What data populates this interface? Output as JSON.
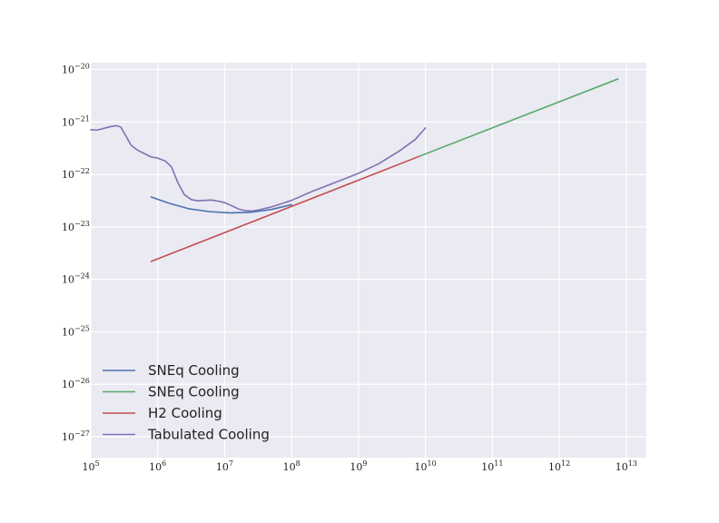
{
  "chart_data": {
    "type": "line",
    "title": "",
    "xlabel": "",
    "ylabel": "",
    "xscale": "log",
    "yscale": "log",
    "xlim": [
      100000,
      20000000000000
    ],
    "ylim": [
      4e-28,
      1.35e-20
    ],
    "grid": true,
    "legend_position": "lower-left",
    "x_ticks": [
      {
        "value": 100000.0,
        "base": "10",
        "exp": "5"
      },
      {
        "value": 1000000.0,
        "base": "10",
        "exp": "6"
      },
      {
        "value": 10000000.0,
        "base": "10",
        "exp": "7"
      },
      {
        "value": 100000000.0,
        "base": "10",
        "exp": "8"
      },
      {
        "value": 1000000000.0,
        "base": "10",
        "exp": "9"
      },
      {
        "value": 10000000000.0,
        "base": "10",
        "exp": "10"
      },
      {
        "value": 100000000000.0,
        "base": "10",
        "exp": "11"
      },
      {
        "value": 1000000000000.0,
        "base": "10",
        "exp": "12"
      },
      {
        "value": 10000000000000.0,
        "base": "10",
        "exp": "13"
      }
    ],
    "y_ticks": [
      {
        "value": 1e-20,
        "base": "10",
        "exp": "−20"
      },
      {
        "value": 1e-21,
        "base": "10",
        "exp": "−21"
      },
      {
        "value": 1e-22,
        "base": "10",
        "exp": "−22"
      },
      {
        "value": 1e-23,
        "base": "10",
        "exp": "−23"
      },
      {
        "value": 1e-24,
        "base": "10",
        "exp": "−24"
      },
      {
        "value": 1e-25,
        "base": "10",
        "exp": "−25"
      },
      {
        "value": 1e-26,
        "base": "10",
        "exp": "−26"
      },
      {
        "value": 1e-27,
        "base": "10",
        "exp": "−27"
      }
    ],
    "series": [
      {
        "name": "SNEq Cooling",
        "color": "#4c72b0",
        "x": [
          800000.0,
          1500000.0,
          3000000.0,
          6000000.0,
          12000000.0,
          25000000.0,
          50000000.0,
          100000000.0
        ],
        "y": [
          3.7e-23,
          2.8e-23,
          2.2e-23,
          1.95e-23,
          1.85e-23,
          1.9e-23,
          2.15e-23,
          2.65e-23
        ]
      },
      {
        "name": "SNEq Cooling",
        "color": "#55a868",
        "x": [
          8000000000.0,
          7500000000000.0
        ],
        "y": [
          2.2e-22,
          6.6e-21
        ]
      },
      {
        "name": "H2 Cooling",
        "color": "#c44e52",
        "x": [
          800000.0,
          8000000000.0
        ],
        "y": [
          2.2e-24,
          2.2e-22
        ]
      },
      {
        "name": "Tabulated Cooling",
        "color": "#8172b2",
        "x": [
          100000.0,
          125000.0,
          160000.0,
          200000.0,
          240000.0,
          280000.0,
          330000.0,
          400000.0,
          500000.0,
          630000.0,
          800000.0,
          1000000.0,
          1300000.0,
          1600000.0,
          2000000.0,
          2500000.0,
          3200000.0,
          4000000.0,
          5000000.0,
          6300000.0,
          8000000.0,
          10000000.0,
          13000000.0,
          16000000.0,
          20000000.0,
          25000000.0,
          32000000.0,
          40000000.0,
          50000000.0,
          70000000.0,
          100000000.0,
          200000000.0,
          500000000.0,
          1000000000.0,
          2000000000.0,
          4000000000.0,
          7000000000.0,
          10000000000.0
        ],
        "y": [
          7.1e-22,
          7e-22,
          7.6e-22,
          8.2e-22,
          8.5e-22,
          8e-22,
          5.6e-22,
          3.6e-22,
          2.9e-22,
          2.5e-22,
          2.15e-22,
          2.05e-22,
          1.8e-22,
          1.4e-22,
          7e-23,
          4.1e-23,
          3.3e-23,
          3.15e-23,
          3.2e-23,
          3.25e-23,
          3.1e-23,
          2.9e-23,
          2.5e-23,
          2.2e-23,
          2.05e-23,
          2e-23,
          2.1e-23,
          2.25e-23,
          2.4e-23,
          2.75e-23,
          3.2e-23,
          4.7e-23,
          7.4e-23,
          1.05e-22,
          1.6e-22,
          2.75e-22,
          4.6e-22,
          7.7e-22
        ]
      }
    ]
  }
}
